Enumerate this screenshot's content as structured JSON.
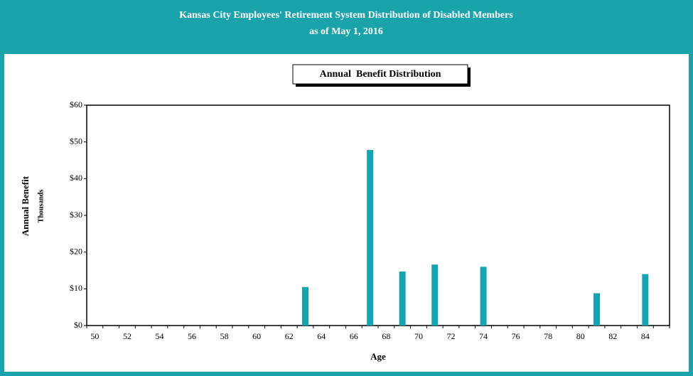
{
  "chart_data": {
    "type": "bar",
    "title": "Kansas City Employees' Retirement System Distribution of Disabled Members",
    "subtitle": "as of May 1, 2016",
    "chart_title": "Annual  Benefit Distribution",
    "x_label": "Age",
    "y_label": "Annual Benefit",
    "y_unit_label": "Thousands",
    "categories": [
      50,
      null,
      52,
      null,
      54,
      null,
      56,
      null,
      58,
      null,
      60,
      null,
      62,
      null,
      64,
      null,
      66,
      null,
      68,
      null,
      70,
      null,
      72,
      null,
      74,
      null,
      76,
      null,
      78,
      null,
      80,
      null,
      82,
      null,
      84,
      null
    ],
    "values": [
      0,
      0,
      0,
      0,
      0,
      0,
      0,
      0,
      0,
      0,
      0,
      0,
      0,
      10.5,
      0,
      0,
      0,
      47.8,
      0,
      14.7,
      0,
      16.6,
      0,
      0,
      16.0,
      0,
      0,
      0,
      0,
      0,
      0,
      8.8,
      0,
      0,
      14.0,
      0
    ],
    "color": "#13a6b2",
    "ylim": [
      0,
      60
    ],
    "yticks": [
      {
        "value": 0,
        "label": "$0"
      },
      {
        "value": 10,
        "label": "$10"
      },
      {
        "value": 20,
        "label": "$20"
      },
      {
        "value": 30,
        "label": "$30"
      },
      {
        "value": 40,
        "label": "$40"
      },
      {
        "value": 50,
        "label": "$50"
      },
      {
        "value": 60,
        "label": "$60"
      }
    ],
    "grid": false
  }
}
